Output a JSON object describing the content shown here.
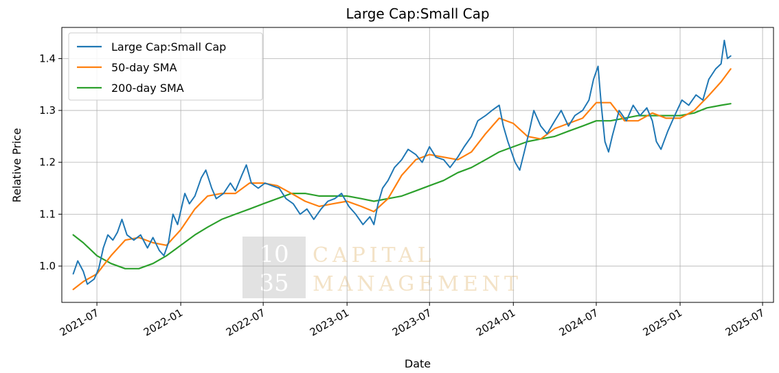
{
  "chart_data": {
    "type": "line",
    "title": "Large Cap:Small Cap",
    "xlabel": "Date",
    "ylabel": "Relative Price",
    "xlim": [
      "2021-04-15",
      "2025-07-25"
    ],
    "ylim": [
      0.93,
      1.46
    ],
    "x_ticks": [
      "2021-07",
      "2022-01",
      "2022-07",
      "2023-01",
      "2023-07",
      "2024-01",
      "2024-07",
      "2025-01",
      "2025-07"
    ],
    "y_ticks": [
      1.0,
      1.1,
      1.2,
      1.3,
      1.4
    ],
    "y_tick_labels": [
      "1.0",
      "1.1",
      "1.2",
      "1.3",
      "1.4"
    ],
    "grid": true,
    "legend_position": "top-left",
    "series": [
      {
        "name": "Large Cap:Small Cap",
        "color": "#1f77b4",
        "points": [
          [
            "2021-05-10",
            0.985
          ],
          [
            "2021-05-20",
            1.01
          ],
          [
            "2021-06-01",
            0.99
          ],
          [
            "2021-06-10",
            0.965
          ],
          [
            "2021-06-25",
            0.975
          ],
          [
            "2021-07-05",
            0.995
          ],
          [
            "2021-07-15",
            1.035
          ],
          [
            "2021-07-25",
            1.06
          ],
          [
            "2021-08-05",
            1.05
          ],
          [
            "2021-08-15",
            1.065
          ],
          [
            "2021-08-25",
            1.09
          ],
          [
            "2021-09-05",
            1.06
          ],
          [
            "2021-09-20",
            1.05
          ],
          [
            "2021-10-05",
            1.06
          ],
          [
            "2021-10-20",
            1.035
          ],
          [
            "2021-11-01",
            1.055
          ],
          [
            "2021-11-15",
            1.03
          ],
          [
            "2021-11-25",
            1.02
          ],
          [
            "2021-12-05",
            1.045
          ],
          [
            "2021-12-15",
            1.1
          ],
          [
            "2021-12-25",
            1.08
          ],
          [
            "2022-01-10",
            1.14
          ],
          [
            "2022-01-20",
            1.12
          ],
          [
            "2022-02-01",
            1.135
          ],
          [
            "2022-02-15",
            1.17
          ],
          [
            "2022-02-25",
            1.185
          ],
          [
            "2022-03-10",
            1.15
          ],
          [
            "2022-03-20",
            1.13
          ],
          [
            "2022-04-05",
            1.14
          ],
          [
            "2022-04-20",
            1.16
          ],
          [
            "2022-05-01",
            1.145
          ],
          [
            "2022-05-15",
            1.175
          ],
          [
            "2022-05-25",
            1.195
          ],
          [
            "2022-06-05",
            1.16
          ],
          [
            "2022-06-20",
            1.15
          ],
          [
            "2022-07-05",
            1.16
          ],
          [
            "2022-07-20",
            1.155
          ],
          [
            "2022-08-05",
            1.15
          ],
          [
            "2022-08-20",
            1.13
          ],
          [
            "2022-09-05",
            1.12
          ],
          [
            "2022-09-20",
            1.1
          ],
          [
            "2022-10-05",
            1.11
          ],
          [
            "2022-10-20",
            1.09
          ],
          [
            "2022-11-05",
            1.11
          ],
          [
            "2022-11-20",
            1.125
          ],
          [
            "2022-12-05",
            1.13
          ],
          [
            "2022-12-20",
            1.14
          ],
          [
            "2023-01-05",
            1.115
          ],
          [
            "2023-01-20",
            1.1
          ],
          [
            "2023-02-05",
            1.08
          ],
          [
            "2023-02-20",
            1.095
          ],
          [
            "2023-03-01",
            1.08
          ],
          [
            "2023-03-10",
            1.12
          ],
          [
            "2023-03-20",
            1.15
          ],
          [
            "2023-04-01",
            1.165
          ],
          [
            "2023-04-15",
            1.19
          ],
          [
            "2023-05-01",
            1.205
          ],
          [
            "2023-05-15",
            1.225
          ],
          [
            "2023-06-01",
            1.215
          ],
          [
            "2023-06-15",
            1.2
          ],
          [
            "2023-07-01",
            1.23
          ],
          [
            "2023-07-15",
            1.21
          ],
          [
            "2023-08-01",
            1.205
          ],
          [
            "2023-08-15",
            1.19
          ],
          [
            "2023-09-01",
            1.21
          ],
          [
            "2023-09-15",
            1.23
          ],
          [
            "2023-10-01",
            1.25
          ],
          [
            "2023-10-15",
            1.28
          ],
          [
            "2023-11-01",
            1.29
          ],
          [
            "2023-11-15",
            1.3
          ],
          [
            "2023-12-01",
            1.31
          ],
          [
            "2023-12-10",
            1.27
          ],
          [
            "2023-12-20",
            1.24
          ],
          [
            "2024-01-05",
            1.2
          ],
          [
            "2024-01-15",
            1.185
          ],
          [
            "2024-01-25",
            1.22
          ],
          [
            "2024-02-05",
            1.26
          ],
          [
            "2024-02-15",
            1.3
          ],
          [
            "2024-03-01",
            1.27
          ],
          [
            "2024-03-15",
            1.255
          ],
          [
            "2024-04-01",
            1.28
          ],
          [
            "2024-04-15",
            1.3
          ],
          [
            "2024-05-01",
            1.27
          ],
          [
            "2024-05-15",
            1.29
          ],
          [
            "2024-06-01",
            1.3
          ],
          [
            "2024-06-15",
            1.32
          ],
          [
            "2024-06-25",
            1.36
          ],
          [
            "2024-07-05",
            1.385
          ],
          [
            "2024-07-12",
            1.31
          ],
          [
            "2024-07-20",
            1.24
          ],
          [
            "2024-07-28",
            1.22
          ],
          [
            "2024-08-05",
            1.25
          ],
          [
            "2024-08-20",
            1.3
          ],
          [
            "2024-09-05",
            1.28
          ],
          [
            "2024-09-20",
            1.31
          ],
          [
            "2024-10-05",
            1.29
          ],
          [
            "2024-10-20",
            1.305
          ],
          [
            "2024-11-01",
            1.28
          ],
          [
            "2024-11-10",
            1.24
          ],
          [
            "2024-11-20",
            1.225
          ],
          [
            "2024-12-05",
            1.26
          ],
          [
            "2024-12-20",
            1.29
          ],
          [
            "2025-01-05",
            1.32
          ],
          [
            "2025-01-20",
            1.31
          ],
          [
            "2025-02-05",
            1.33
          ],
          [
            "2025-02-20",
            1.32
          ],
          [
            "2025-03-05",
            1.36
          ],
          [
            "2025-03-20",
            1.38
          ],
          [
            "2025-04-01",
            1.39
          ],
          [
            "2025-04-08",
            1.435
          ],
          [
            "2025-04-15",
            1.4
          ],
          [
            "2025-04-22",
            1.405
          ]
        ]
      },
      {
        "name": "50-day SMA",
        "color": "#ff7f0e",
        "points": [
          [
            "2021-05-10",
            0.955
          ],
          [
            "2021-06-01",
            0.97
          ],
          [
            "2021-07-01",
            0.985
          ],
          [
            "2021-08-01",
            1.02
          ],
          [
            "2021-09-01",
            1.05
          ],
          [
            "2021-10-01",
            1.055
          ],
          [
            "2021-11-01",
            1.045
          ],
          [
            "2021-12-01",
            1.04
          ],
          [
            "2022-01-01",
            1.07
          ],
          [
            "2022-02-01",
            1.11
          ],
          [
            "2022-03-01",
            1.135
          ],
          [
            "2022-04-01",
            1.14
          ],
          [
            "2022-05-01",
            1.14
          ],
          [
            "2022-06-01",
            1.16
          ],
          [
            "2022-07-01",
            1.16
          ],
          [
            "2022-08-01",
            1.155
          ],
          [
            "2022-09-01",
            1.14
          ],
          [
            "2022-10-01",
            1.125
          ],
          [
            "2022-11-01",
            1.115
          ],
          [
            "2022-12-01",
            1.12
          ],
          [
            "2023-01-01",
            1.125
          ],
          [
            "2023-02-01",
            1.115
          ],
          [
            "2023-03-01",
            1.105
          ],
          [
            "2023-04-01",
            1.13
          ],
          [
            "2023-05-01",
            1.175
          ],
          [
            "2023-06-01",
            1.205
          ],
          [
            "2023-07-01",
            1.215
          ],
          [
            "2023-08-01",
            1.21
          ],
          [
            "2023-09-01",
            1.205
          ],
          [
            "2023-10-01",
            1.22
          ],
          [
            "2023-11-01",
            1.255
          ],
          [
            "2023-12-01",
            1.285
          ],
          [
            "2024-01-01",
            1.275
          ],
          [
            "2024-02-01",
            1.25
          ],
          [
            "2024-03-01",
            1.245
          ],
          [
            "2024-04-01",
            1.265
          ],
          [
            "2024-05-01",
            1.275
          ],
          [
            "2024-06-01",
            1.285
          ],
          [
            "2024-07-01",
            1.315
          ],
          [
            "2024-08-01",
            1.315
          ],
          [
            "2024-09-01",
            1.28
          ],
          [
            "2024-10-01",
            1.28
          ],
          [
            "2024-11-01",
            1.295
          ],
          [
            "2024-12-01",
            1.285
          ],
          [
            "2025-01-01",
            1.285
          ],
          [
            "2025-02-01",
            1.3
          ],
          [
            "2025-03-01",
            1.325
          ],
          [
            "2025-04-01",
            1.355
          ],
          [
            "2025-04-22",
            1.38
          ]
        ]
      },
      {
        "name": "200-day SMA",
        "color": "#2ca02c",
        "points": [
          [
            "2021-05-10",
            1.06
          ],
          [
            "2021-06-01",
            1.045
          ],
          [
            "2021-07-01",
            1.02
          ],
          [
            "2021-08-01",
            1.005
          ],
          [
            "2021-09-01",
            0.995
          ],
          [
            "2021-10-01",
            0.995
          ],
          [
            "2021-11-01",
            1.005
          ],
          [
            "2021-12-01",
            1.02
          ],
          [
            "2022-01-01",
            1.04
          ],
          [
            "2022-02-01",
            1.06
          ],
          [
            "2022-03-01",
            1.075
          ],
          [
            "2022-04-01",
            1.09
          ],
          [
            "2022-05-01",
            1.1
          ],
          [
            "2022-06-01",
            1.11
          ],
          [
            "2022-07-01",
            1.12
          ],
          [
            "2022-08-01",
            1.13
          ],
          [
            "2022-09-01",
            1.14
          ],
          [
            "2022-10-01",
            1.14
          ],
          [
            "2022-11-01",
            1.135
          ],
          [
            "2022-12-01",
            1.135
          ],
          [
            "2023-01-01",
            1.135
          ],
          [
            "2023-02-01",
            1.13
          ],
          [
            "2023-03-01",
            1.125
          ],
          [
            "2023-04-01",
            1.13
          ],
          [
            "2023-05-01",
            1.135
          ],
          [
            "2023-06-01",
            1.145
          ],
          [
            "2023-07-01",
            1.155
          ],
          [
            "2023-08-01",
            1.165
          ],
          [
            "2023-09-01",
            1.18
          ],
          [
            "2023-10-01",
            1.19
          ],
          [
            "2023-11-01",
            1.205
          ],
          [
            "2023-12-01",
            1.22
          ],
          [
            "2024-01-01",
            1.23
          ],
          [
            "2024-02-01",
            1.24
          ],
          [
            "2024-03-01",
            1.245
          ],
          [
            "2024-04-01",
            1.25
          ],
          [
            "2024-05-01",
            1.26
          ],
          [
            "2024-06-01",
            1.27
          ],
          [
            "2024-07-01",
            1.28
          ],
          [
            "2024-08-01",
            1.28
          ],
          [
            "2024-09-01",
            1.285
          ],
          [
            "2024-10-01",
            1.29
          ],
          [
            "2024-11-01",
            1.29
          ],
          [
            "2024-12-01",
            1.29
          ],
          [
            "2025-01-01",
            1.29
          ],
          [
            "2025-02-01",
            1.295
          ],
          [
            "2025-03-01",
            1.305
          ],
          [
            "2025-04-01",
            1.31
          ],
          [
            "2025-04-22",
            1.313
          ]
        ]
      }
    ]
  },
  "watermark": {
    "logo_top": "10",
    "logo_bottom": "35",
    "line1": "CAPITAL",
    "line2": "MANAGEMENT"
  }
}
